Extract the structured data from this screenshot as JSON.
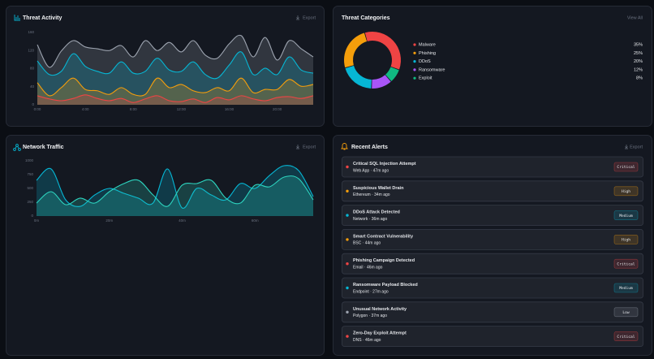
{
  "chart_data": [
    {
      "type": "area",
      "title": "Threat Activity",
      "action": "Export",
      "categories": [
        "0:00",
        null,
        null,
        null,
        "4:00",
        null,
        null,
        null,
        "8:00",
        null,
        null,
        null,
        "12:00",
        null,
        null,
        null,
        "16:00",
        null,
        null,
        null,
        "20:00",
        null,
        null,
        null
      ],
      "ylim": [
        0,
        160
      ],
      "yticks": [
        0,
        40,
        80,
        120,
        160
      ],
      "series": [
        {
          "color": "#9ca3af",
          "values": [
            133,
            83,
            119,
            142,
            128,
            124,
            120,
            131,
            106,
            142,
            120,
            138,
            117,
            142,
            110,
            103,
            135,
            153,
            106,
            149,
            99,
            142,
            124,
            106
          ]
        },
        {
          "color": "#06b6d4",
          "values": [
            97,
            67,
            74,
            113,
            85,
            74,
            70,
            95,
            70,
            74,
            103,
            77,
            74,
            95,
            67,
            59,
            88,
            117,
            67,
            81,
            67,
            106,
            77,
            70
          ]
        },
        {
          "color": "#f59e0b",
          "values": [
            49,
            20,
            38,
            59,
            34,
            31,
            23,
            38,
            23,
            23,
            59,
            38,
            45,
            31,
            27,
            38,
            31,
            59,
            27,
            34,
            34,
            56,
            41,
            45
          ]
        },
        {
          "color": "#ef4444",
          "values": [
            20,
            13,
            9,
            14,
            22,
            14,
            9,
            14,
            5,
            13,
            20,
            9,
            7,
            13,
            5,
            16,
            11,
            20,
            13,
            9,
            16,
            18,
            14,
            20
          ]
        }
      ]
    },
    {
      "type": "donut",
      "title": "Threat Categories",
      "action": "View All",
      "categories": [
        "Malware",
        "Phishing",
        "DDoS",
        "Ransomware",
        "Exploit"
      ],
      "values": [
        35,
        25,
        20,
        12,
        8
      ],
      "value_labels": [
        "35%",
        "25%",
        "20%",
        "12%",
        "8%"
      ],
      "colors": [
        "#ef4444",
        "#f59e0b",
        "#06b6d4",
        "#a855f7",
        "#10b981"
      ]
    },
    {
      "type": "area",
      "title": "Network Traffic",
      "action": "Export",
      "x": [
        0,
        4,
        8,
        12,
        16,
        20,
        24,
        28,
        32,
        36,
        40,
        44,
        48,
        52,
        56,
        60,
        64,
        68,
        72,
        76
      ],
      "xlim": [
        0,
        76
      ],
      "xticks": [
        {
          "value": 0,
          "label": "0m"
        },
        {
          "value": 20,
          "label": "20m"
        },
        {
          "value": 40,
          "label": "40m"
        },
        {
          "value": 60,
          "label": "60m"
        }
      ],
      "ylim": [
        0,
        1000
      ],
      "yticks": [
        0,
        250,
        500,
        750,
        1000
      ],
      "series": [
        {
          "color": "#06b6d4",
          "values": [
            647,
            853,
            294,
            176,
            382,
            500,
            412,
            324,
            235,
            853,
            147,
            500,
            382,
            294,
            588,
            500,
            735,
            912,
            824,
            353
          ]
        },
        {
          "color": "#2dd4bf",
          "values": [
            235,
            441,
            206,
            324,
            235,
            441,
            588,
            647,
            382,
            176,
            559,
            588,
            647,
            324,
            235,
            559,
            529,
            706,
            676,
            294
          ]
        }
      ]
    }
  ],
  "alerts": {
    "title": "Recent Alerts",
    "action": "Export",
    "items": [
      {
        "title": "Critical SQL Injection Attempt",
        "meta": "Web App · 47m ago",
        "severity": "Critical",
        "color": "#ef4444"
      },
      {
        "title": "Suspicious Wallet Drain",
        "meta": "Ethereum · 34m ago",
        "severity": "High",
        "color": "#f59e0b"
      },
      {
        "title": "DDoS Attack Detected",
        "meta": "Network · 36m ago",
        "severity": "Medium",
        "color": "#06b6d4"
      },
      {
        "title": "Smart Contract Vulnerability",
        "meta": "BSC · 44m ago",
        "severity": "High",
        "color": "#f59e0b"
      },
      {
        "title": "Phishing Campaign Detected",
        "meta": "Email · 46m ago",
        "severity": "Critical",
        "color": "#ef4444"
      },
      {
        "title": "Ransomware Payload Blocked",
        "meta": "Endpoint · 27m ago",
        "severity": "Medium",
        "color": "#06b6d4"
      },
      {
        "title": "Unusual Network Activity",
        "meta": "Polygon · 37m ago",
        "severity": "Low",
        "color": "#9ca3af"
      },
      {
        "title": "Zero-Day Exploit Attempt",
        "meta": "DNS · 46m ago",
        "severity": "Critical",
        "color": "#ef4444"
      }
    ]
  }
}
